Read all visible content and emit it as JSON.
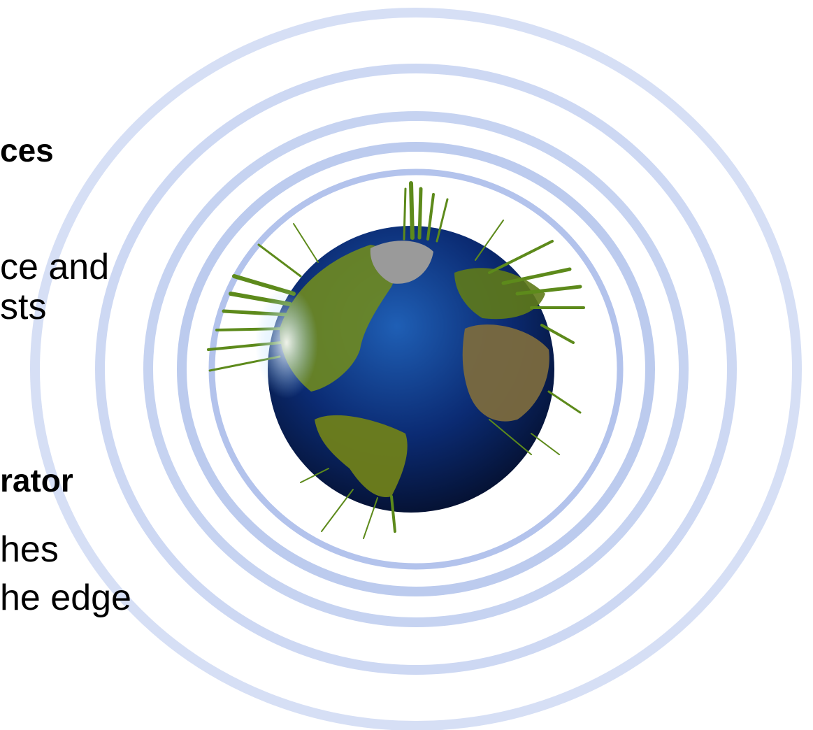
{
  "text_lines": {
    "heading_1": "ces",
    "line_1": "ce and",
    "line_2": "sts",
    "heading_2": "rator",
    "line_3": "hes",
    "line_4": "he edge"
  },
  "colors": {
    "background": "#ffffff",
    "ring": "#b3c3ec",
    "ring_light": "#c9d5f2",
    "ocean": "#0b2b73",
    "land": "#6f8a1f"
  },
  "graphic": {
    "subject": "earth-globe-with-data-spikes",
    "ring_count": 5
  }
}
